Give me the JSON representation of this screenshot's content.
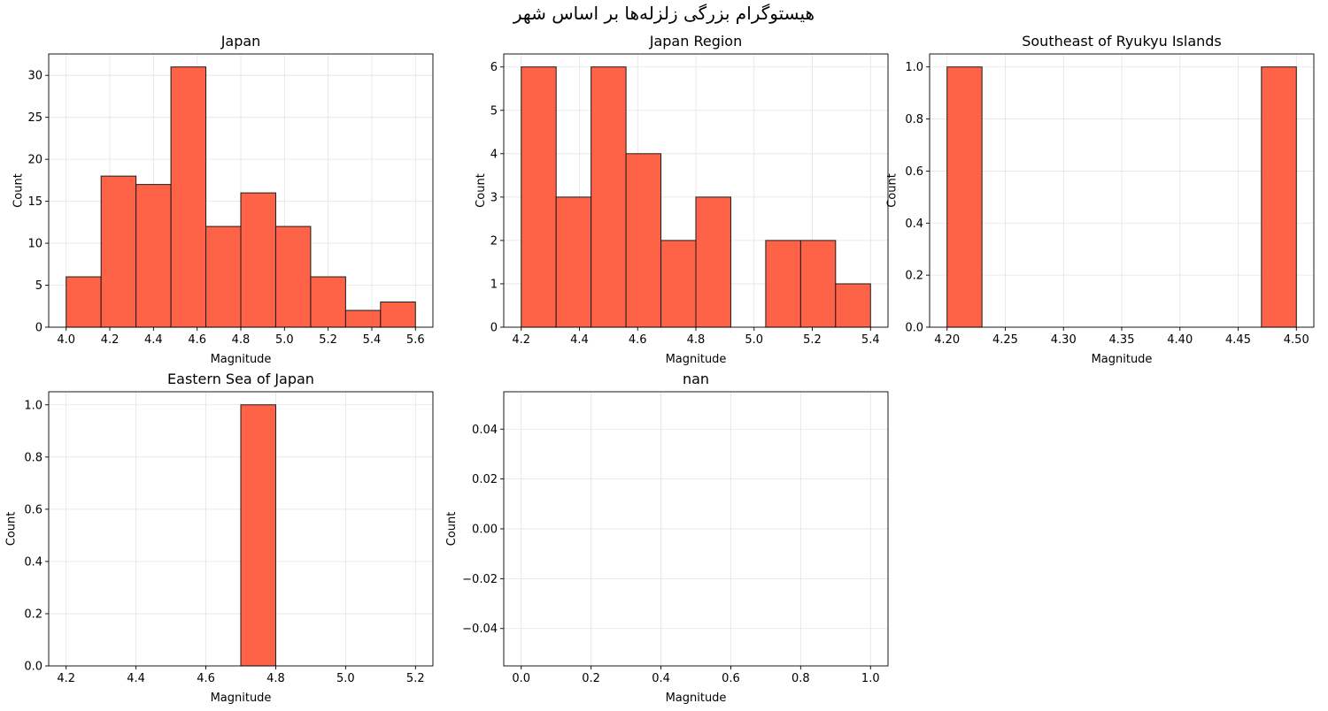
{
  "figure": {
    "suptitle": "هیستوگرام بزرگی زلزله‌ها بر اساس شهر"
  },
  "style": {
    "bar_fill": "#ff6347",
    "bar_edge": "#1a1a1a",
    "grid_color": "#e3e3e3",
    "axis_color": "#000000"
  },
  "chart_data": [
    {
      "type": "bar",
      "title": "Japan",
      "xlabel": "Magnitude",
      "ylabel": "Count",
      "grid": true,
      "xlim": [
        3.92,
        5.68
      ],
      "ylim": [
        0,
        32.55
      ],
      "xticks": [
        "4.0",
        "4.2",
        "4.4",
        "4.6",
        "4.8",
        "5.0",
        "5.2",
        "5.4",
        "5.6"
      ],
      "yticks": [
        "0",
        "5",
        "10",
        "15",
        "20",
        "25",
        "30"
      ],
      "bins": [
        {
          "x0": 4.0,
          "x1": 4.16,
          "count": 6
        },
        {
          "x0": 4.16,
          "x1": 4.32,
          "count": 18
        },
        {
          "x0": 4.32,
          "x1": 4.48,
          "count": 17
        },
        {
          "x0": 4.48,
          "x1": 4.64,
          "count": 31
        },
        {
          "x0": 4.64,
          "x1": 4.8,
          "count": 12
        },
        {
          "x0": 4.8,
          "x1": 4.96,
          "count": 16
        },
        {
          "x0": 4.96,
          "x1": 5.12,
          "count": 12
        },
        {
          "x0": 5.12,
          "x1": 5.28,
          "count": 6
        },
        {
          "x0": 5.28,
          "x1": 5.44,
          "count": 2
        },
        {
          "x0": 5.44,
          "x1": 5.6,
          "count": 3
        }
      ]
    },
    {
      "type": "bar",
      "title": "Japan Region",
      "xlabel": "Magnitude",
      "ylabel": "Count",
      "grid": true,
      "xlim": [
        4.14,
        5.46
      ],
      "ylim": [
        0,
        6.3
      ],
      "xticks": [
        "4.2",
        "4.4",
        "4.6",
        "4.8",
        "5.0",
        "5.2",
        "5.4"
      ],
      "yticks": [
        "0",
        "1",
        "2",
        "3",
        "4",
        "5",
        "6"
      ],
      "bins": [
        {
          "x0": 4.2,
          "x1": 4.32,
          "count": 6
        },
        {
          "x0": 4.32,
          "x1": 4.44,
          "count": 3
        },
        {
          "x0": 4.44,
          "x1": 4.56,
          "count": 6
        },
        {
          "x0": 4.56,
          "x1": 4.68,
          "count": 4
        },
        {
          "x0": 4.68,
          "x1": 4.8,
          "count": 2
        },
        {
          "x0": 4.8,
          "x1": 4.92,
          "count": 3
        },
        {
          "x0": 4.92,
          "x1": 5.04,
          "count": 0
        },
        {
          "x0": 5.04,
          "x1": 5.16,
          "count": 2
        },
        {
          "x0": 5.16,
          "x1": 5.28,
          "count": 2
        },
        {
          "x0": 5.28,
          "x1": 5.4,
          "count": 1
        }
      ]
    },
    {
      "type": "bar",
      "title": "Southeast of Ryukyu Islands",
      "xlabel": "Magnitude",
      "ylabel": "Count",
      "grid": true,
      "xlim": [
        4.185,
        4.515
      ],
      "ylim": [
        0,
        1.05
      ],
      "xticks": [
        "4.20",
        "4.25",
        "4.30",
        "4.35",
        "4.40",
        "4.45",
        "4.50"
      ],
      "yticks": [
        "0.0",
        "0.2",
        "0.4",
        "0.6",
        "0.8",
        "1.0"
      ],
      "bins": [
        {
          "x0": 4.2,
          "x1": 4.23,
          "count": 1
        },
        {
          "x0": 4.23,
          "x1": 4.26,
          "count": 0
        },
        {
          "x0": 4.26,
          "x1": 4.29,
          "count": 0
        },
        {
          "x0": 4.29,
          "x1": 4.32,
          "count": 0
        },
        {
          "x0": 4.32,
          "x1": 4.35,
          "count": 0
        },
        {
          "x0": 4.35,
          "x1": 4.38,
          "count": 0
        },
        {
          "x0": 4.38,
          "x1": 4.41,
          "count": 0
        },
        {
          "x0": 4.41,
          "x1": 4.44,
          "count": 0
        },
        {
          "x0": 4.44,
          "x1": 4.47,
          "count": 0
        },
        {
          "x0": 4.47,
          "x1": 4.5,
          "count": 1
        }
      ]
    },
    {
      "type": "bar",
      "title": "Eastern Sea of Japan",
      "xlabel": "Magnitude",
      "ylabel": "Count",
      "grid": true,
      "xlim": [
        4.15,
        5.25
      ],
      "ylim": [
        0,
        1.05
      ],
      "xticks": [
        "4.2",
        "4.4",
        "4.6",
        "4.8",
        "5.0",
        "5.2"
      ],
      "yticks": [
        "0.0",
        "0.2",
        "0.4",
        "0.6",
        "0.8",
        "1.0"
      ],
      "bins": [
        {
          "x0": 4.2,
          "x1": 4.3,
          "count": 0
        },
        {
          "x0": 4.3,
          "x1": 4.4,
          "count": 0
        },
        {
          "x0": 4.4,
          "x1": 4.5,
          "count": 0
        },
        {
          "x0": 4.5,
          "x1": 4.6,
          "count": 0
        },
        {
          "x0": 4.6,
          "x1": 4.7,
          "count": 0
        },
        {
          "x0": 4.7,
          "x1": 4.8,
          "count": 1
        },
        {
          "x0": 4.8,
          "x1": 4.9,
          "count": 0
        },
        {
          "x0": 4.9,
          "x1": 5.0,
          "count": 0
        },
        {
          "x0": 5.0,
          "x1": 5.1,
          "count": 0
        },
        {
          "x0": 5.1,
          "x1": 5.2,
          "count": 0
        }
      ]
    },
    {
      "type": "bar",
      "title": "nan",
      "xlabel": "Magnitude",
      "ylabel": "Count",
      "grid": true,
      "xlim": [
        -0.05,
        1.05
      ],
      "ylim": [
        -0.055,
        0.055
      ],
      "xticks": [
        "0.0",
        "0.2",
        "0.4",
        "0.6",
        "0.8",
        "1.0"
      ],
      "yticks": [
        "−0.04",
        "−0.02",
        "0.00",
        "0.02",
        "0.04"
      ],
      "ytick_values": [
        -0.04,
        -0.02,
        0.0,
        0.02,
        0.04
      ],
      "bins": [
        {
          "x0": 0.0,
          "x1": 0.1,
          "count": 0
        },
        {
          "x0": 0.1,
          "x1": 0.2,
          "count": 0
        },
        {
          "x0": 0.2,
          "x1": 0.3,
          "count": 0
        },
        {
          "x0": 0.3,
          "x1": 0.4,
          "count": 0
        },
        {
          "x0": 0.4,
          "x1": 0.5,
          "count": 0
        },
        {
          "x0": 0.5,
          "x1": 0.6,
          "count": 0
        },
        {
          "x0": 0.6,
          "x1": 0.7,
          "count": 0
        },
        {
          "x0": 0.7,
          "x1": 0.8,
          "count": 0
        },
        {
          "x0": 0.8,
          "x1": 0.9,
          "count": 0
        },
        {
          "x0": 0.9,
          "x1": 1.0,
          "count": 0
        }
      ]
    }
  ]
}
